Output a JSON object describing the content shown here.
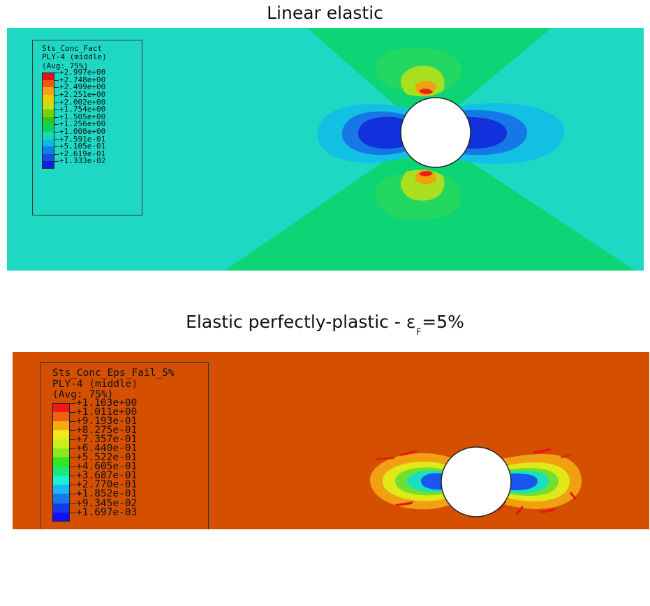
{
  "top": {
    "title": "Linear elastic",
    "legend": {
      "variable": "Sts_Conc_Fact",
      "layer": "PLY-4 (middle)",
      "averaging": "(Avg: 75%)",
      "values": [
        "+2.997e+00",
        "+2.748e+00",
        "+2.499e+00",
        "+2.251e+00",
        "+2.002e+00",
        "+1.754e+00",
        "+1.505e+00",
        "+1.256e+00",
        "+1.008e+00",
        "+7.591e-01",
        "+5.105e-01",
        "+2.619e-01",
        "+1.333e-02"
      ],
      "colors": [
        "#e8101a",
        "#f05a10",
        "#f5a010",
        "#e8d010",
        "#c8e010",
        "#78d010",
        "#30c820",
        "#10d060",
        "#14dcb0",
        "#10b8e8",
        "#1080e8",
        "#1450e0",
        "#1020d8"
      ]
    },
    "field_colors": {
      "background": "#1ed8c4",
      "cross_band": "#0dd474"
    }
  },
  "bottom": {
    "title_main": "Elastic perfectly-plastic - ε",
    "title_subscript": "F",
    "title_suffix": "=5%",
    "legend": {
      "variable": "Sts_Conc_Eps_Fail_5%",
      "layer": "PLY-4 (middle)",
      "averaging": "(Avg: 75%)",
      "values": [
        "+1.103e+00",
        "+1.011e+00",
        "+9.193e-01",
        "+8.275e-01",
        "+7.357e-01",
        "+6.440e-01",
        "+5.522e-01",
        "+4.605e-01",
        "+3.687e-01",
        "+2.770e-01",
        "+1.852e-01",
        "+9.345e-02",
        "+1.697e-03"
      ],
      "colors": [
        "#f01818",
        "#f06010",
        "#f8a810",
        "#f0e818",
        "#c8f018",
        "#88e818",
        "#30e820",
        "#18e878",
        "#18f0d8",
        "#18b8f0",
        "#1878f0",
        "#1838f0",
        "#1010f0"
      ]
    },
    "field_colors": {
      "background": "#d45000"
    }
  }
}
